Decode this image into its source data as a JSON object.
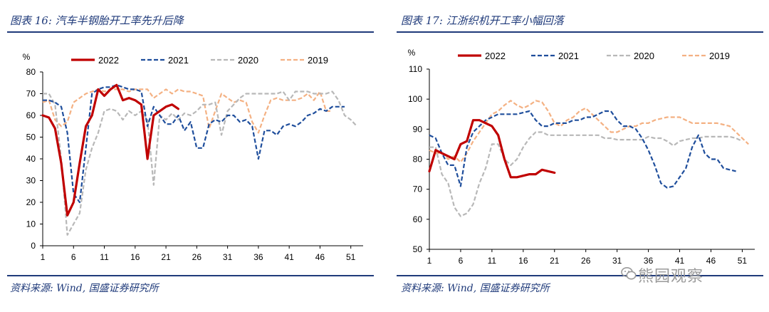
{
  "page": {
    "watermark_text": "熊园观察",
    "watermark_icon": "wechat-icon"
  },
  "left": {
    "title": "图表 16:  汽车半钢胎开工率先升后降",
    "source": "资料来源: Wind, 国盛证券研究所"
  },
  "right": {
    "title": "图表 17:  江浙织机开工率小幅回落",
    "source": "资料来源: Wind, 国盛证券研究所"
  },
  "chart_data": [
    {
      "type": "line",
      "title": "汽车半钢胎开工率先升后降",
      "ylabel": "%",
      "ylim": [
        0,
        80
      ],
      "yticks": [
        0,
        10,
        20,
        30,
        40,
        50,
        60,
        70,
        80
      ],
      "xlim": [
        1,
        53
      ],
      "xticks": [
        1,
        6,
        11,
        16,
        21,
        26,
        31,
        36,
        41,
        46,
        51
      ],
      "grid": false,
      "legend": "top",
      "series": [
        {
          "name": "2022",
          "color": "#c00000",
          "style": "solid",
          "width": 3.2,
          "x": [
            1,
            2,
            3,
            4,
            5,
            6,
            7,
            8,
            9,
            10,
            11,
            12,
            13,
            14,
            15,
            16,
            17,
            18,
            19,
            20,
            21,
            22,
            23
          ],
          "values": [
            60,
            59,
            54,
            38,
            14,
            20,
            38,
            55,
            60,
            72,
            69,
            72,
            74,
            67,
            68,
            67,
            65,
            40,
            60,
            62,
            64,
            65,
            63
          ]
        },
        {
          "name": "2021",
          "color": "#1f4e9c",
          "style": "dash",
          "width": 2.2,
          "x": [
            1,
            2,
            3,
            4,
            5,
            6,
            7,
            8,
            9,
            10,
            11,
            12,
            13,
            14,
            15,
            16,
            17,
            18,
            19,
            20,
            21,
            22,
            23,
            24,
            25,
            26,
            27,
            28,
            29,
            30,
            31,
            32,
            33,
            34,
            35,
            36,
            37,
            38,
            39,
            40,
            41,
            42,
            43,
            44,
            45,
            46,
            47,
            48,
            49,
            50
          ],
          "values": [
            67,
            67,
            66,
            64,
            52,
            24,
            20,
            45,
            70,
            72,
            73,
            73,
            74,
            73,
            72,
            72,
            71,
            55,
            64,
            60,
            56,
            56,
            60,
            53,
            57,
            45,
            45,
            56,
            58,
            57,
            60,
            60,
            57,
            58,
            55,
            40,
            53,
            53,
            51,
            55,
            56,
            55,
            57,
            60,
            61,
            63,
            62,
            64,
            64,
            64
          ]
        },
        {
          "name": "2020",
          "color": "#b8b8b8",
          "style": "dash",
          "width": 2.2,
          "x": [
            1,
            2,
            3,
            4,
            5,
            6,
            7,
            8,
            9,
            10,
            11,
            12,
            13,
            14,
            15,
            16,
            17,
            18,
            19,
            20,
            21,
            22,
            23,
            24,
            25,
            26,
            27,
            28,
            29,
            30,
            31,
            32,
            33,
            34,
            35,
            36,
            37,
            38,
            39,
            40,
            41,
            42,
            43,
            44,
            45,
            46,
            47,
            48,
            49,
            50,
            51,
            52
          ],
          "values": [
            70,
            70,
            65,
            40,
            5,
            10,
            15,
            35,
            45,
            52,
            62,
            63,
            62,
            58,
            62,
            60,
            62,
            58,
            28,
            60,
            58,
            61,
            58,
            61,
            60,
            62,
            65,
            65,
            66,
            51,
            62,
            65,
            68,
            70,
            70,
            70,
            70,
            70,
            70,
            71,
            67,
            71,
            71,
            71,
            70,
            70,
            70,
            71,
            67,
            60,
            58,
            55
          ]
        },
        {
          "name": "2019",
          "color": "#f4b183",
          "style": "dash",
          "width": 2.2,
          "x": [
            1,
            2,
            3,
            4,
            5,
            6,
            7,
            8,
            9,
            10,
            11,
            12,
            13,
            14,
            15,
            16,
            17,
            18,
            19,
            20,
            21,
            22,
            23,
            24,
            25,
            26,
            27,
            28,
            29,
            30,
            31,
            32,
            33,
            34,
            35,
            36,
            37,
            38,
            39,
            40,
            41,
            42,
            43,
            44,
            45,
            46,
            47,
            48
          ],
          "values": [
            66,
            67,
            58,
            55,
            57,
            66,
            68,
            70,
            71,
            72,
            71,
            72,
            72,
            72,
            71,
            72,
            72,
            72,
            68,
            70,
            72,
            70,
            72,
            71,
            71,
            70,
            69,
            54,
            62,
            70,
            68,
            66,
            67,
            66,
            57,
            52,
            60,
            67,
            68,
            67,
            67,
            67,
            68,
            70,
            67,
            71,
            62,
            62
          ]
        }
      ]
    },
    {
      "type": "line",
      "title": "江浙织机开工率小幅回落",
      "ylabel": "%",
      "ylim": [
        50,
        110
      ],
      "yticks": [
        50,
        60,
        70,
        80,
        90,
        100,
        110
      ],
      "xlim": [
        1,
        53
      ],
      "xticks": [
        1,
        6,
        11,
        16,
        21,
        26,
        31,
        36,
        41,
        46,
        51
      ],
      "grid": false,
      "legend": "top",
      "series": [
        {
          "name": "2022",
          "color": "#c00000",
          "style": "solid",
          "width": 3.2,
          "x": [
            1,
            2,
            3,
            4,
            5,
            6,
            7,
            8,
            9,
            10,
            11,
            12,
            13,
            14,
            15,
            16,
            17,
            18,
            19,
            20,
            21
          ],
          "values": [
            76,
            83,
            82,
            81,
            80,
            85,
            86,
            93,
            93,
            92,
            91,
            88,
            80,
            74,
            74,
            74.5,
            75,
            75,
            76.5,
            76,
            75.5
          ]
        },
        {
          "name": "2021",
          "color": "#1f4e9c",
          "style": "dash",
          "width": 2.2,
          "x": [
            1,
            2,
            3,
            4,
            5,
            6,
            7,
            8,
            9,
            10,
            11,
            12,
            13,
            14,
            15,
            16,
            17,
            18,
            19,
            20,
            21,
            22,
            23,
            24,
            25,
            26,
            27,
            28,
            29,
            30,
            31,
            32,
            33,
            34,
            35,
            36,
            37,
            38,
            39,
            40,
            41,
            42,
            43,
            44,
            45,
            46,
            47,
            48,
            49,
            50
          ],
          "values": [
            88,
            87,
            82,
            78,
            78,
            71,
            84,
            89,
            91,
            93,
            94,
            95,
            95,
            95,
            95,
            95.5,
            96,
            93,
            91,
            91,
            92,
            92,
            92,
            93,
            93,
            94,
            94,
            95,
            96,
            96,
            93,
            91,
            91,
            90,
            87,
            83,
            78,
            72,
            70.5,
            71,
            74,
            77,
            84,
            88,
            82,
            80,
            80,
            77,
            76.5,
            76
          ]
        },
        {
          "name": "2020",
          "color": "#b8b8b8",
          "style": "dash",
          "width": 2.2,
          "x": [
            1,
            2,
            3,
            4,
            5,
            6,
            7,
            8,
            9,
            10,
            11,
            12,
            13,
            14,
            15,
            16,
            17,
            18,
            19,
            20,
            21,
            22,
            23,
            24,
            25,
            26,
            27,
            28,
            29,
            30,
            31,
            32,
            33,
            34,
            35,
            36,
            37,
            38,
            39,
            40,
            41,
            42,
            43,
            44,
            45,
            46,
            47,
            48,
            49,
            50,
            51
          ],
          "values": [
            84,
            84,
            75,
            72,
            64,
            61,
            62,
            65,
            72,
            77,
            85,
            85,
            80,
            78,
            80,
            84,
            87,
            89,
            89,
            88,
            88,
            88,
            88,
            88,
            88,
            88,
            88,
            88,
            87,
            87,
            86.5,
            86.5,
            86.5,
            86.5,
            86.5,
            87.5,
            87,
            87,
            86,
            84.5,
            86,
            86.5,
            87,
            87,
            87.5,
            87.5,
            87.5,
            87.5,
            87.5,
            87,
            86
          ]
        },
        {
          "name": "2019",
          "color": "#f4b183",
          "style": "dash",
          "width": 2.2,
          "x": [
            1,
            2,
            3,
            4,
            5,
            6,
            7,
            8,
            9,
            10,
            11,
            12,
            13,
            14,
            15,
            16,
            17,
            18,
            19,
            20,
            21,
            22,
            23,
            24,
            25,
            26,
            27,
            28,
            29,
            30,
            31,
            32,
            33,
            34,
            35,
            36,
            37,
            38,
            39,
            40,
            41,
            42,
            43,
            44,
            45,
            46,
            47,
            48,
            49,
            50,
            51,
            52
          ],
          "values": [
            83,
            82,
            82,
            80,
            81,
            79,
            82,
            86,
            89,
            92,
            95,
            96,
            98,
            99.5,
            98,
            97,
            98,
            99.5,
            99,
            96,
            92,
            91,
            93,
            94,
            96,
            97,
            95,
            93,
            91,
            89,
            89,
            90,
            91,
            91,
            92,
            92,
            93,
            93.5,
            94,
            94,
            94,
            93,
            92,
            92,
            92,
            92,
            92,
            91.5,
            91,
            89,
            87,
            85
          ]
        }
      ]
    }
  ]
}
